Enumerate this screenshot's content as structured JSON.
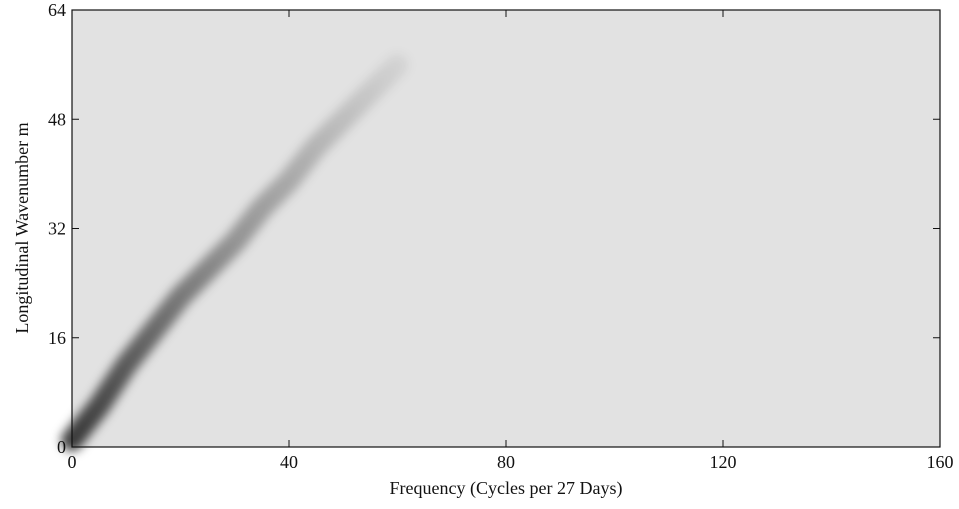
{
  "chart_data": {
    "type": "line",
    "xlabel": "Frequency (Cycles per 27 Days)",
    "ylabel": "Longitudinal Wavenumber m",
    "x": [
      0,
      5,
      10,
      15,
      20,
      25,
      30,
      35,
      40,
      45,
      50,
      55,
      60
    ],
    "series": [
      {
        "color": "#3a3a3a",
        "values": [
          1,
          6,
          12,
          17,
          22,
          26,
          30,
          35,
          39,
          44,
          48,
          52,
          56
        ]
      }
    ],
    "xlim": [
      0,
      160
    ],
    "xticks": [
      0,
      40,
      80,
      120,
      160
    ],
    "ylim": [
      0,
      64
    ],
    "yticks": [
      0,
      16,
      32,
      48,
      64
    ],
    "background": "#e2e2e2"
  }
}
